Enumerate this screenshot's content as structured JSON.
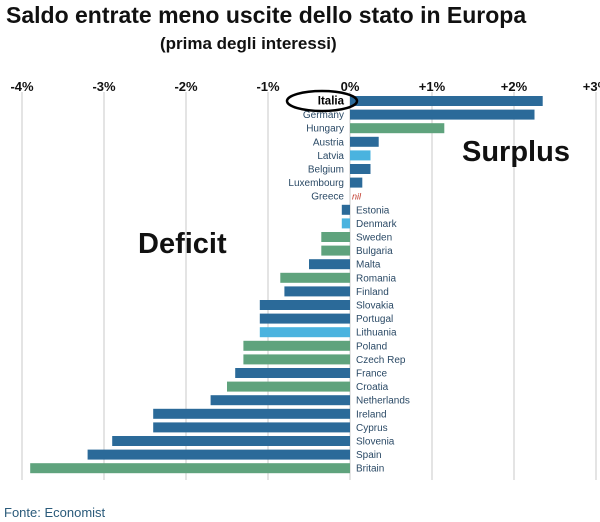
{
  "header": {
    "title": "Saldo entrate meno uscite dello stato in Europa",
    "subtitle": "(prima degli interessi)"
  },
  "annotations": {
    "surplus": "Surplus",
    "deficit": "Deficit",
    "circled_label": "Italia"
  },
  "footer": {
    "source": "Fonte: Economist"
  },
  "colors": {
    "dark": "#2b6a99",
    "green": "#5fa37d",
    "light": "#4ab3df",
    "grid": "#c9c9c9",
    "nil": "#c0392b"
  },
  "chart_data": {
    "type": "bar",
    "orientation": "horizontal",
    "title": "Saldo entrate meno uscite dello stato in Europa",
    "subtitle": "(prima degli interessi)",
    "xlim": [
      -4,
      3
    ],
    "xticks": [
      -4,
      -3,
      -2,
      -1,
      0,
      1,
      2,
      3
    ],
    "xtick_labels": [
      "-4%",
      "-3%",
      "-2%",
      "-1%",
      "0%",
      "+1%",
      "+2%",
      "+3%"
    ],
    "grid": true,
    "categories": [
      "Italia",
      "Germany",
      "Hungary",
      "Austria",
      "Latvia",
      "Belgium",
      "Luxembourg",
      "Greece",
      "Estonia",
      "Denmark",
      "Sweden",
      "Bulgaria",
      "Malta",
      "Romania",
      "Finland",
      "Slovakia",
      "Portugal",
      "Lithuania",
      "Poland",
      "Czech Rep",
      "France",
      "Croatia",
      "Netherlands",
      "Ireland",
      "Cyprus",
      "Slovenia",
      "Spain",
      "Britain"
    ],
    "values": [
      2.35,
      2.25,
      1.15,
      0.35,
      0.25,
      0.25,
      0.15,
      0,
      -0.1,
      -0.1,
      -0.35,
      -0.35,
      -0.5,
      -0.85,
      -0.8,
      -1.1,
      -1.1,
      -1.1,
      -1.3,
      -1.3,
      -1.4,
      -1.5,
      -1.7,
      -2.4,
      -2.4,
      -2.9,
      -3.2,
      -3.9
    ],
    "bar_colors": [
      "dark",
      "dark",
      "green",
      "dark",
      "light",
      "dark",
      "dark",
      "dark",
      "dark",
      "light",
      "green",
      "green",
      "dark",
      "green",
      "dark",
      "dark",
      "dark",
      "light",
      "green",
      "green",
      "dark",
      "green",
      "dark",
      "dark",
      "dark",
      "dark",
      "dark",
      "green"
    ],
    "data_labels": {
      "Greece": "nil"
    }
  }
}
